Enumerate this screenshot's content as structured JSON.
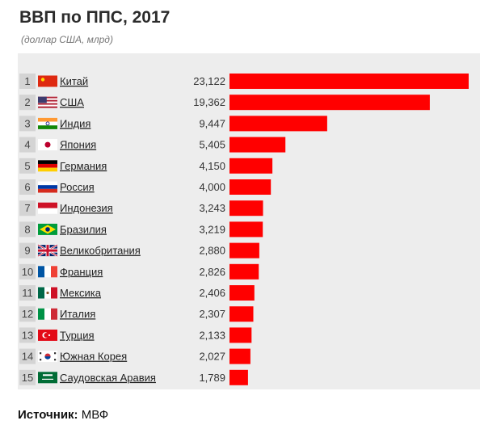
{
  "header": {
    "title": "ВВП по ППС, 2017",
    "subtitle": "(доллар США, млрд)"
  },
  "source": {
    "label": "Источник:",
    "value": "МВФ"
  },
  "colors": {
    "bar": "#ff0000",
    "panel": "#ededed",
    "rank_cell": "#d4d4d4"
  },
  "chart_data": {
    "type": "bar",
    "orientation": "horizontal",
    "title": "ВВП по ППС, 2017",
    "subtitle": "(доллар США, млрд)",
    "xlim": [
      0,
      23122
    ],
    "grid": false,
    "rows": [
      {
        "rank": "1",
        "country": "Китай",
        "value_label": "23,122",
        "value": 23122,
        "flag": "cn"
      },
      {
        "rank": "2",
        "country": "США",
        "value_label": "19,362",
        "value": 19362,
        "flag": "us"
      },
      {
        "rank": "3",
        "country": "Индия",
        "value_label": "9,447",
        "value": 9447,
        "flag": "in"
      },
      {
        "rank": "4",
        "country": "Япония",
        "value_label": "5,405",
        "value": 5405,
        "flag": "jp"
      },
      {
        "rank": "5",
        "country": "Германия",
        "value_label": "4,150",
        "value": 4150,
        "flag": "de"
      },
      {
        "rank": "6",
        "country": "Россия",
        "value_label": "4,000",
        "value": 4000,
        "flag": "ru"
      },
      {
        "rank": "7",
        "country": "Индонезия",
        "value_label": "3,243",
        "value": 3243,
        "flag": "id"
      },
      {
        "rank": "8",
        "country": "Бразилия",
        "value_label": "3,219",
        "value": 3219,
        "flag": "br"
      },
      {
        "rank": "9",
        "country": "Великобритания",
        "value_label": "2,880",
        "value": 2880,
        "flag": "gb"
      },
      {
        "rank": "10",
        "country": "Франция",
        "value_label": "2,826",
        "value": 2826,
        "flag": "fr"
      },
      {
        "rank": "11",
        "country": "Мексика",
        "value_label": "2,406",
        "value": 2406,
        "flag": "mx"
      },
      {
        "rank": "12",
        "country": "Италия",
        "value_label": "2,307",
        "value": 2307,
        "flag": "it"
      },
      {
        "rank": "13",
        "country": "Турция",
        "value_label": "2,133",
        "value": 2133,
        "flag": "tr"
      },
      {
        "rank": "14",
        "country": "Южная Корея",
        "value_label": "2,027",
        "value": 2027,
        "flag": "kr"
      },
      {
        "rank": "15",
        "country": "Саудовская Аравия",
        "value_label": "1,789",
        "value": 1789,
        "flag": "sa"
      }
    ]
  }
}
